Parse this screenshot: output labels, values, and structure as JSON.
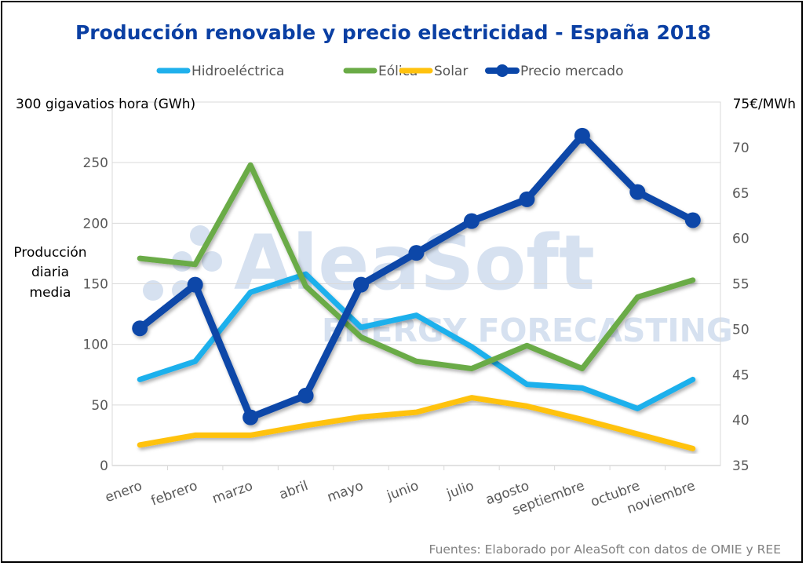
{
  "chart_data": {
    "type": "line",
    "title": "Producción renovable y precio electricidad - España 2018",
    "categories": [
      "enero",
      "febrero",
      "marzo",
      "abril",
      "mayo",
      "junio",
      "julio",
      "agosto",
      "septiembre",
      "octubre",
      "noviembre"
    ],
    "series": [
      {
        "name": "Hidroeléctrica",
        "axis": "left",
        "color": "#1fb0ec",
        "markers": false,
        "values": [
          71,
          86,
          143,
          158,
          114,
          124,
          98,
          67,
          64,
          47,
          71
        ]
      },
      {
        "name": "Eólica",
        "axis": "left",
        "color": "#6aab46",
        "markers": false,
        "values": [
          171,
          166,
          248,
          148,
          106,
          86,
          80,
          99,
          80,
          139,
          153
        ]
      },
      {
        "name": "Solar",
        "axis": "left",
        "color": "#ffc20e",
        "markers": false,
        "values": [
          17,
          25,
          25,
          33,
          40,
          44,
          56,
          49,
          38,
          26,
          14
        ]
      },
      {
        "name": "Precio mercado",
        "axis": "right",
        "color": "#0a46a8",
        "markers": true,
        "values": [
          50.1,
          54.9,
          40.3,
          42.7,
          54.9,
          58.4,
          61.9,
          64.3,
          71.3,
          65.1,
          62.0
        ]
      }
    ],
    "left_axis": {
      "min": 0,
      "max": 300,
      "ticks": [
        0,
        50,
        100,
        150,
        200,
        250
      ],
      "top_label": "300 gigavatios hora (GWh)",
      "title_lines": [
        "Producción",
        "diaria",
        "media"
      ]
    },
    "right_axis": {
      "min": 35,
      "max": 75,
      "ticks": [
        35,
        40,
        45,
        50,
        55,
        60,
        65,
        70
      ],
      "top_label": "75€/MWh"
    },
    "grid": true,
    "legend_position": "top",
    "source": "Fuentes: Elaborado por AleaSoft con datos de OMIE y REE",
    "watermark": {
      "main": "AleaSoft",
      "sub": "ENERGY FORECASTING"
    }
  }
}
